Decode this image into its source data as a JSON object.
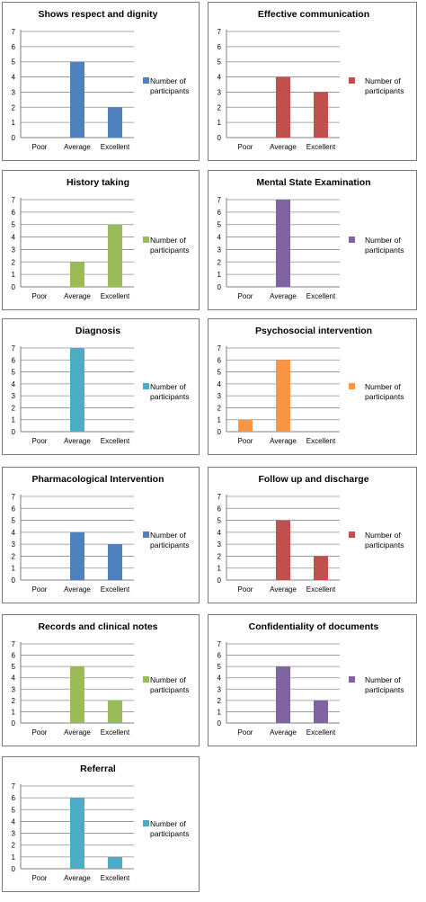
{
  "chart_data": [
    {
      "type": "bar",
      "title": "Shows respect and dignity",
      "categories": [
        "Poor",
        "Average",
        "Excellent"
      ],
      "series": [
        {
          "name": "Number of participants",
          "values": [
            0,
            5,
            2
          ],
          "color": "#4f81bd"
        }
      ],
      "ylim": [
        0,
        7
      ],
      "yticks": [
        "0",
        "1",
        "2",
        "3",
        "4",
        "5",
        "6",
        "7"
      ],
      "grid": true,
      "legend": "right"
    },
    {
      "type": "bar",
      "title": "Effective communication",
      "categories": [
        "Poor",
        "Average",
        "Excellent"
      ],
      "series": [
        {
          "name": "Number of participants",
          "values": [
            0,
            4,
            3
          ],
          "color": "#c0504d"
        }
      ],
      "ylim": [
        0,
        7
      ],
      "yticks": [
        "0",
        "1",
        "2",
        "3",
        "4",
        "5",
        "6",
        "7"
      ],
      "grid": true,
      "legend": "right"
    },
    {
      "type": "bar",
      "title": "History taking",
      "categories": [
        "Poor",
        "Average",
        "Excellent"
      ],
      "series": [
        {
          "name": "Number of participants",
          "values": [
            0,
            2,
            5
          ],
          "color": "#9bbb59"
        }
      ],
      "ylim": [
        0,
        7
      ],
      "yticks": [
        "0",
        "1",
        "2",
        "3",
        "4",
        "5",
        "6",
        "7"
      ],
      "grid": true,
      "legend": "right"
    },
    {
      "type": "bar",
      "title": "Mental State Examination",
      "categories": [
        "Poor",
        "Average",
        "Excellent"
      ],
      "series": [
        {
          "name": "Number of participants",
          "values": [
            0,
            7,
            0
          ],
          "color": "#8064a2"
        }
      ],
      "ylim": [
        0,
        7
      ],
      "yticks": [
        "0",
        "1",
        "2",
        "3",
        "4",
        "5",
        "6",
        "7"
      ],
      "grid": true,
      "legend": "right"
    },
    {
      "type": "bar",
      "title": "Diagnosis",
      "categories": [
        "Poor",
        "Average",
        "Excellent"
      ],
      "series": [
        {
          "name": "Number of participants",
          "values": [
            0,
            7,
            0
          ],
          "color": "#4bacc6"
        }
      ],
      "ylim": [
        0,
        7
      ],
      "yticks": [
        "0",
        "1",
        "2",
        "3",
        "4",
        "5",
        "6",
        "7"
      ],
      "grid": true,
      "legend": "right"
    },
    {
      "type": "bar",
      "title": "Psychosocial intervention",
      "categories": [
        "Poor",
        "Average",
        "Excellent"
      ],
      "series": [
        {
          "name": "Number of participants",
          "values": [
            1,
            6,
            0
          ],
          "color": "#f79646"
        }
      ],
      "ylim": [
        0,
        7
      ],
      "yticks": [
        "0",
        "1",
        "2",
        "3",
        "4",
        "5",
        "6",
        "7"
      ],
      "grid": true,
      "legend": "right"
    },
    {
      "type": "bar",
      "title": "Pharmacological Intervention",
      "categories": [
        "Poor",
        "Average",
        "Excellent"
      ],
      "series": [
        {
          "name": "Number of participants",
          "values": [
            0,
            4,
            3
          ],
          "color": "#4f81bd"
        }
      ],
      "ylim": [
        0,
        7
      ],
      "yticks": [
        "0",
        "1",
        "2",
        "3",
        "4",
        "5",
        "6",
        "7"
      ],
      "grid": true,
      "legend": "right"
    },
    {
      "type": "bar",
      "title": "Follow up and discharge",
      "categories": [
        "Poor",
        "Average",
        "Excellent"
      ],
      "series": [
        {
          "name": "Number of participants",
          "values": [
            0,
            5,
            2
          ],
          "color": "#c0504d"
        }
      ],
      "ylim": [
        0,
        7
      ],
      "yticks": [
        "0",
        "1",
        "2",
        "3",
        "4",
        "5",
        "6",
        "7"
      ],
      "grid": true,
      "legend": "right"
    },
    {
      "type": "bar",
      "title": "Records and clinical notes",
      "categories": [
        "Poor",
        "Average",
        "Excellent"
      ],
      "series": [
        {
          "name": "Number of participants",
          "values": [
            0,
            5,
            2
          ],
          "color": "#9bbb59"
        }
      ],
      "ylim": [
        0,
        7
      ],
      "yticks": [
        "0",
        "1",
        "2",
        "3",
        "4",
        "5",
        "6",
        "7"
      ],
      "grid": true,
      "legend": "right"
    },
    {
      "type": "bar",
      "title": "Confidentiality of documents",
      "categories": [
        "Poor",
        "Average",
        "Excellent"
      ],
      "series": [
        {
          "name": "Number of participants",
          "values": [
            0,
            5,
            2
          ],
          "color": "#8064a2"
        }
      ],
      "ylim": [
        0,
        7
      ],
      "yticks": [
        "0",
        "1",
        "2",
        "3",
        "4",
        "5",
        "6",
        "7"
      ],
      "grid": true,
      "legend": "right"
    },
    {
      "type": "bar",
      "title": "Referral",
      "categories": [
        "Poor",
        "Average",
        "Excellent"
      ],
      "series": [
        {
          "name": "Number of participants",
          "values": [
            0,
            6,
            1
          ],
          "color": "#4bacc6"
        }
      ],
      "ylim": [
        0,
        7
      ],
      "yticks": [
        "0",
        "1",
        "2",
        "3",
        "4",
        "5",
        "6",
        "7"
      ],
      "grid": true,
      "legend": "right"
    }
  ]
}
